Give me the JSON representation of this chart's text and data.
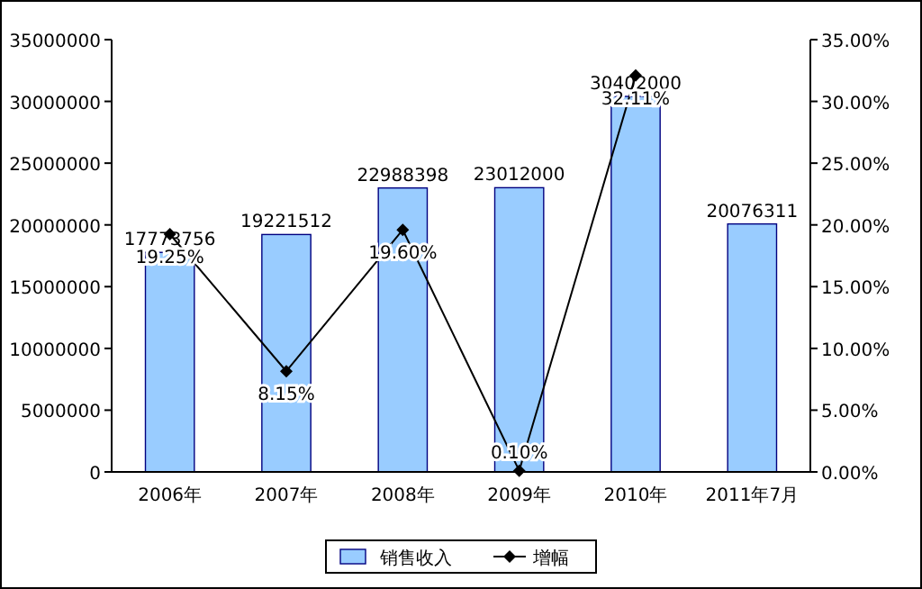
{
  "chart_data": {
    "type": "bar",
    "categories": [
      "2006年",
      "2007年",
      "2008年",
      "2009年",
      "2010年",
      "2011年7月"
    ],
    "series": [
      {
        "name": "销售收入",
        "color": "#99ccff",
        "values": [
          17773756,
          19221512,
          22988398,
          23012000,
          30402000,
          20076311
        ],
        "value_labels": [
          "17773756",
          "19221512",
          "22988398",
          "23012000",
          "30402000",
          "20076311"
        ]
      },
      {
        "name": "增幅",
        "type": "line",
        "axis": "y2",
        "color": "#000000",
        "values": [
          19.25,
          8.15,
          19.6,
          0.1,
          32.11,
          null
        ],
        "value_labels": [
          "19.25%",
          "8.15%",
          "19.60%",
          "0.10%",
          "32.11%",
          null
        ]
      }
    ],
    "ylim": [
      0,
      35000000
    ],
    "yticks": [
      0,
      5000000,
      10000000,
      15000000,
      20000000,
      25000000,
      30000000,
      35000000
    ],
    "y2lim": [
      0,
      35
    ],
    "y2ticks": [
      {
        "value": 0,
        "label": "0.00%"
      },
      {
        "value": 5,
        "label": "5.00%"
      },
      {
        "value": 10,
        "label": "10.00%"
      },
      {
        "value": 15,
        "label": "15.00%"
      },
      {
        "value": 20,
        "label": "20.00%"
      },
      {
        "value": 25,
        "label": "25.00%"
      },
      {
        "value": 30,
        "label": "30.00%"
      },
      {
        "value": 35,
        "label": "35.00%"
      }
    ],
    "legend": "bottom",
    "marker": "diamond",
    "line_style": "solid"
  }
}
